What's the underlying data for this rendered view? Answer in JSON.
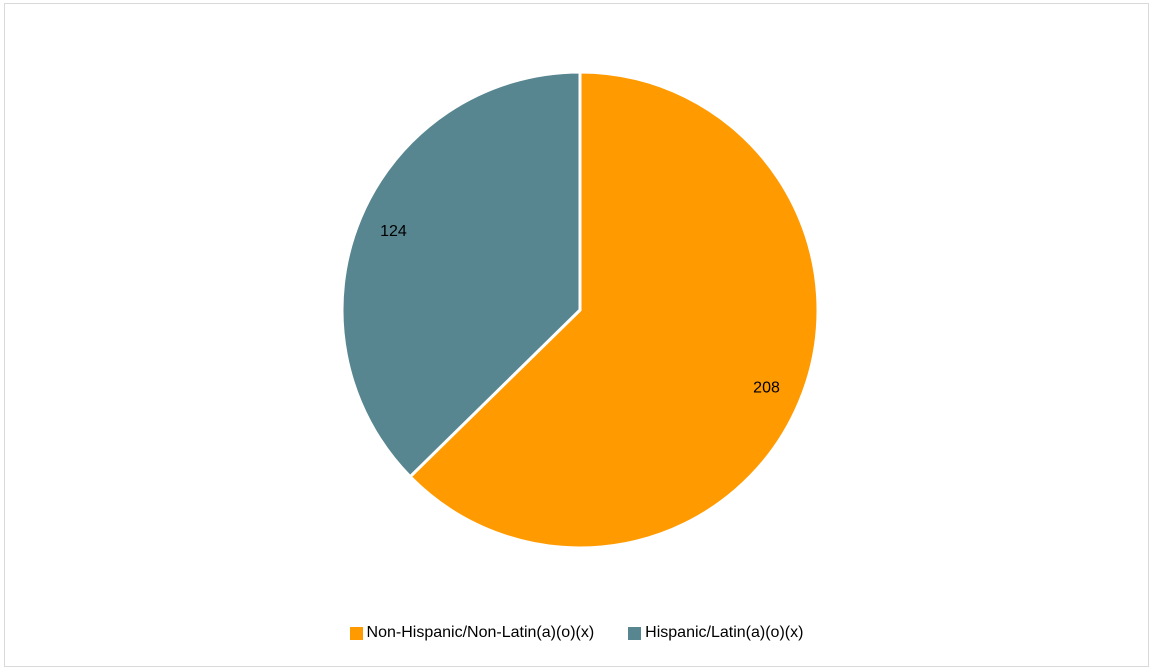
{
  "chart_data": {
    "type": "pie",
    "categories": [
      "Non-Hispanic/Non-Latin(a)(o)(x)",
      "Hispanic/Latin(a)(o)(x)"
    ],
    "values": [
      208,
      124
    ],
    "colors": [
      "#FF9A00",
      "#578690"
    ],
    "data_labels": [
      "208",
      "124"
    ],
    "start_angle_deg": 0,
    "direction": "clockwise",
    "legend": "bottom"
  }
}
